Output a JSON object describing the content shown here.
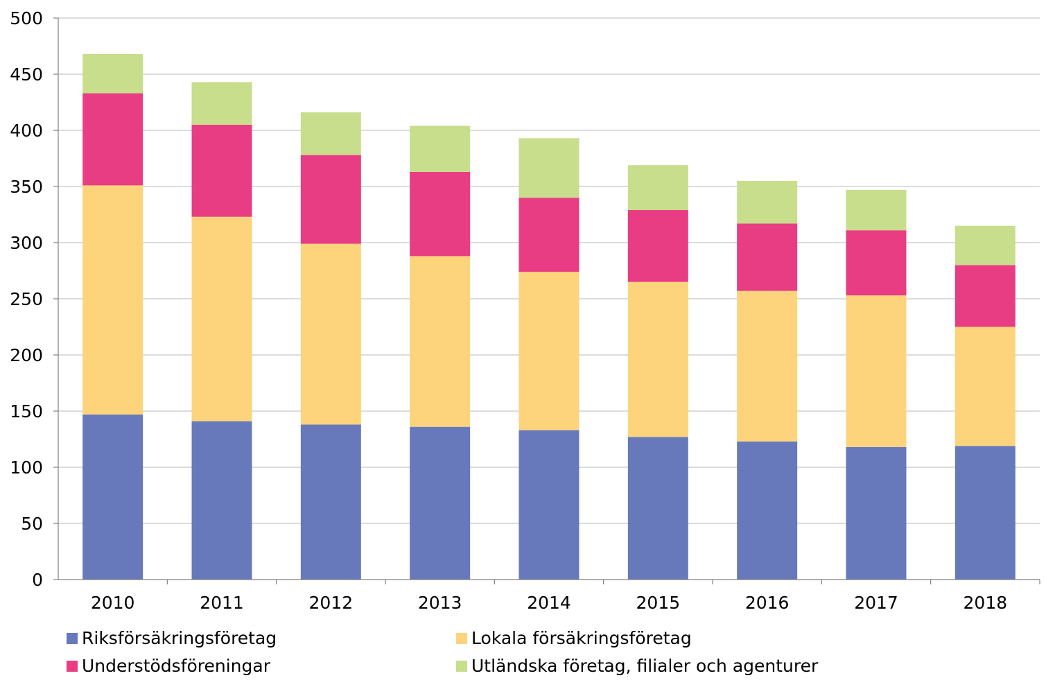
{
  "chart_data": {
    "type": "bar",
    "stacked": true,
    "categories": [
      "2010",
      "2011",
      "2012",
      "2013",
      "2014",
      "2015",
      "2016",
      "2017",
      "2018"
    ],
    "series": [
      {
        "name": "Riksförsäkringsföretag",
        "color": "#6779BA",
        "values": [
          147,
          141,
          138,
          136,
          133,
          127,
          123,
          118,
          119
        ]
      },
      {
        "name": "Lokala försäkringsföretag",
        "color": "#FDD37C",
        "values": [
          204,
          182,
          161,
          152,
          141,
          138,
          134,
          135,
          106
        ]
      },
      {
        "name": "Understödsföreningar",
        "color": "#E93D83",
        "values": [
          82,
          82,
          79,
          75,
          66,
          64,
          60,
          58,
          55
        ]
      },
      {
        "name": "Utländska företag, filialer och agenturer",
        "color": "#C8DE8C",
        "values": [
          35,
          38,
          38,
          41,
          53,
          40,
          38,
          36,
          35
        ]
      }
    ],
    "ylim": [
      0,
      500
    ],
    "yticks": [
      "0",
      "50",
      "100",
      "150",
      "200",
      "250",
      "300",
      "350",
      "400",
      "450",
      "500"
    ],
    "grid": true,
    "legend_position": "bottom",
    "title": "",
    "xlabel": "",
    "ylabel": ""
  }
}
